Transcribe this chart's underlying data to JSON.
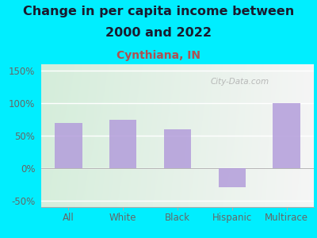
{
  "title_line1": "Change in per capita income between",
  "title_line2": "2000 and 2022",
  "subtitle": "Cynthiana, IN",
  "categories": [
    "All",
    "White",
    "Black",
    "Hispanic",
    "Multirace"
  ],
  "values": [
    70,
    75,
    60,
    -30,
    100
  ],
  "bar_color": "#b39ddb",
  "background_outer": "#00eeff",
  "grad_color_left": "#d4edda",
  "grad_color_right": "#f5f5f5",
  "title_color": "#1a1a2e",
  "subtitle_color": "#b05050",
  "tick_color": "#666666",
  "grid_color": "#cccccc",
  "ylim": [
    -60,
    160
  ],
  "yticks": [
    -50,
    0,
    50,
    100,
    150
  ],
  "watermark": "City-Data.com",
  "title_fontsize": 11.5,
  "subtitle_fontsize": 10,
  "tick_fontsize": 8.5,
  "bar_width": 0.5
}
